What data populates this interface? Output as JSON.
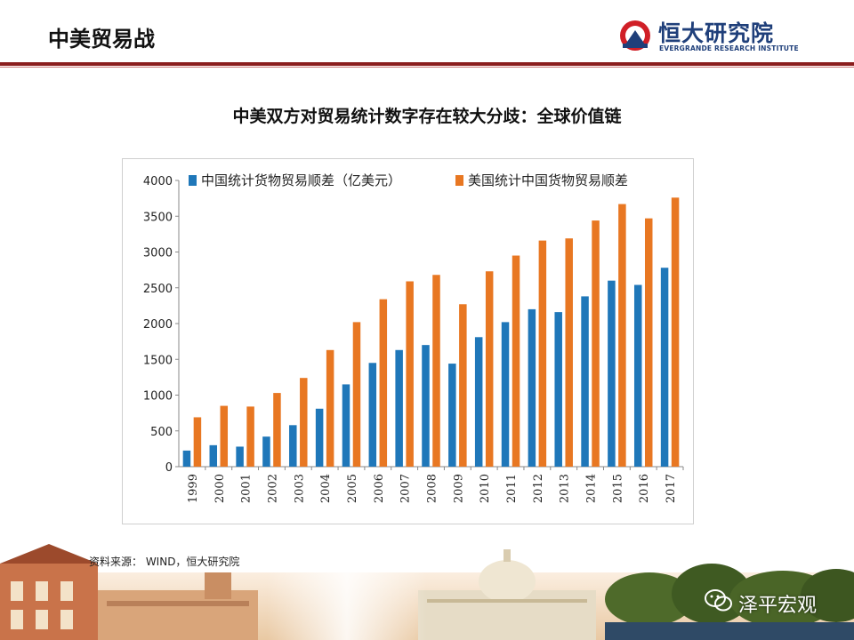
{
  "header": {
    "title": "中美贸易战",
    "logo_name": "恒大研究院",
    "logo_sub": "EVERGRANDE RESEARCH INSTITUTE"
  },
  "source": "资料来源： WIND，恒大研究院",
  "watermark": "泽平宏观",
  "colors": {
    "header_rule": "#8b1d1d",
    "series_china": "#1f77b9",
    "series_us": "#e87722"
  },
  "chart_data": {
    "type": "bar",
    "title": "中美双方对贸易统计数字存在较大分歧：全球价值链",
    "xlabel": "",
    "ylabel": "",
    "ylim": [
      0,
      4000
    ],
    "yticks": [
      "0",
      "500",
      "1000",
      "1500",
      "2000",
      "2500",
      "3000",
      "3500",
      "4000"
    ],
    "categories": [
      "1999",
      "2000",
      "2001",
      "2002",
      "2003",
      "2004",
      "2005",
      "2006",
      "2007",
      "2008",
      "2009",
      "2010",
      "2011",
      "2012",
      "2013",
      "2014",
      "2015",
      "2016",
      "2017"
    ],
    "series": [
      {
        "name": "中国统计货物贸易顺差（亿美元）",
        "values": [
          225,
          300,
          280,
          420,
          580,
          810,
          1150,
          1450,
          1630,
          1700,
          1440,
          1810,
          2020,
          2200,
          2160,
          2380,
          2600,
          2540,
          2780
        ]
      },
      {
        "name": "美国统计中国货物贸易顺差",
        "values": [
          690,
          850,
          840,
          1030,
          1240,
          1630,
          2020,
          2340,
          2590,
          2680,
          2270,
          2730,
          2950,
          3160,
          3190,
          3440,
          3670,
          3470,
          3760
        ]
      }
    ],
    "grid": false,
    "legend": "top"
  }
}
